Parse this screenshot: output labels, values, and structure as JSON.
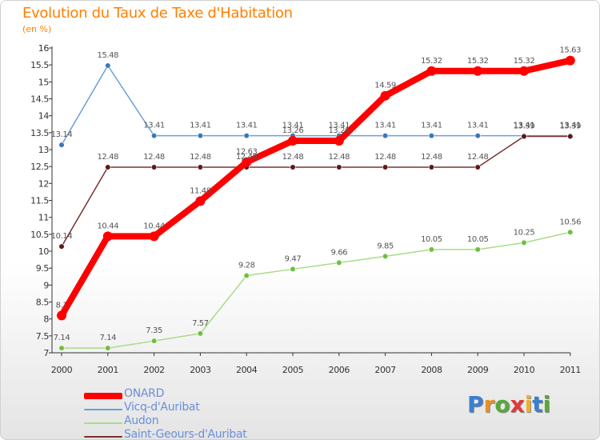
{
  "chart_data": {
    "type": "line",
    "title": "Evolution du Taux de Taxe d'Habitation",
    "subtitle": "(en %)",
    "categories": [
      "2000",
      "2001",
      "2002",
      "2003",
      "2004",
      "2005",
      "2006",
      "2007",
      "2008",
      "2009",
      "2010",
      "2011"
    ],
    "ylim": [
      7,
      16
    ],
    "yticks": [
      "7",
      "7.5",
      "8",
      "8.5",
      "9",
      "9.5",
      "10",
      "10.5",
      "11",
      "11.5",
      "12",
      "12.5",
      "13",
      "13.5",
      "14",
      "14.5",
      "15",
      "15.5",
      "16"
    ],
    "grid": false,
    "legend_position": "bottom-left",
    "series": [
      {
        "name": "ONARD",
        "color": "#ff0000",
        "values": [
          8.1,
          10.44,
          10.44,
          11.48,
          12.63,
          13.26,
          13.26,
          14.59,
          15.32,
          15.32,
          15.32,
          15.63
        ],
        "labels": [
          "8.1",
          "10.44",
          "10.44",
          "11.48",
          "12.63",
          "13.26",
          "13.26",
          "14.59",
          "15.32",
          "15.32",
          "15.32",
          "15.63"
        ]
      },
      {
        "name": "Vicq-d'Auribat",
        "color": "#6a9fd8",
        "values": [
          13.14,
          15.48,
          13.41,
          13.41,
          13.41,
          13.41,
          13.41,
          13.41,
          13.41,
          13.41,
          13.41,
          13.41
        ],
        "labels": [
          "13.14",
          "15.48",
          "13.41",
          "13.41",
          "13.41",
          "13.41",
          "13.41",
          "13.41",
          "13.41",
          "13.41",
          "13.41",
          "13.41"
        ]
      },
      {
        "name": "Audon",
        "color": "#a8dc88",
        "values": [
          7.14,
          7.14,
          7.35,
          7.57,
          9.28,
          9.47,
          9.66,
          9.85,
          10.05,
          10.05,
          10.25,
          10.56
        ],
        "labels": [
          "7.14",
          "7.14",
          "7.35",
          "7.57",
          "9.28",
          "9.47",
          "9.66",
          "9.85",
          "10.05",
          "10.05",
          "10.25",
          "10.56"
        ]
      },
      {
        "name": "Saint-Geours-d'Auribat",
        "color": "#7a3030",
        "values": [
          10.14,
          12.48,
          12.48,
          12.48,
          12.48,
          12.48,
          12.48,
          12.48,
          12.48,
          12.48,
          13.39,
          13.39
        ],
        "labels": [
          "10.14",
          "12.48",
          "12.48",
          "12.48",
          "12.48",
          "12.48",
          "12.48",
          "12.48",
          "12.48",
          "12.48",
          "13.39",
          "13.39"
        ]
      }
    ]
  },
  "logo": {
    "letters": [
      "P",
      "r",
      "o",
      "x",
      "i",
      "t",
      "i"
    ],
    "colors": [
      "#3a7fd0",
      "#e8902a",
      "#5aa83a",
      "#e03a3a",
      "#f0b020",
      "#3a7fd0",
      "#5aa83a"
    ]
  }
}
